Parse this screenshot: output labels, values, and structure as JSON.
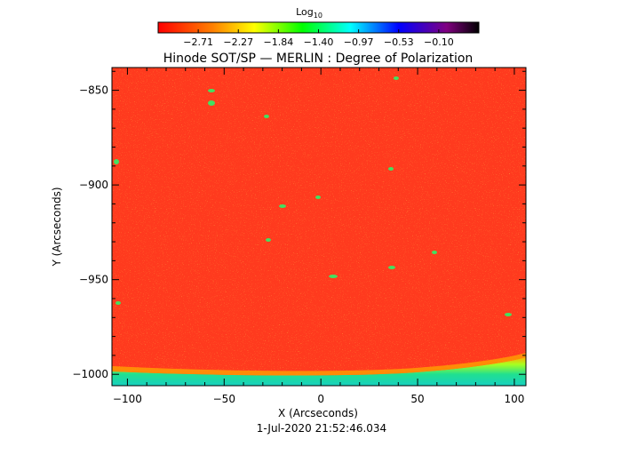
{
  "figure": {
    "title": "Hinode SOT/SP — MERLIN : Degree of Polarization",
    "date_label": "1-Jul-2020 21:52:46.034"
  },
  "colorbar": {
    "label_main": "Log",
    "label_sub": "10",
    "ticks": [
      "−2.71",
      "−2.27",
      "−1.84",
      "−1.40",
      "−0.97",
      "−0.53",
      "−0.10"
    ],
    "tick_values": [
      -2.71,
      -2.27,
      -1.84,
      -1.4,
      -0.97,
      -0.53,
      -0.1
    ],
    "colors": [
      "#ff0000",
      "#ff8000",
      "#ffff00",
      "#00ff00",
      "#00ffff",
      "#0000ff",
      "#800080",
      "#000000"
    ]
  },
  "image": {
    "xlabel": "X (Arcseconds)",
    "ylabel": "Y (Arcseconds)",
    "xlim": [
      -108,
      106
    ],
    "ylim": [
      -1006,
      -838
    ],
    "x_ticks": [
      {
        "v": -100,
        "label": "−100"
      },
      {
        "v": -50,
        "label": "−50"
      },
      {
        "v": 0,
        "label": "0"
      },
      {
        "v": 50,
        "label": "50"
      },
      {
        "v": 100,
        "label": "100"
      }
    ],
    "y_ticks": [
      {
        "v": -850,
        "label": "−850"
      },
      {
        "v": -900,
        "label": "−900"
      },
      {
        "v": -950,
        "label": "−950"
      },
      {
        "v": -1000,
        "label": "−1000"
      }
    ],
    "background_color": "#ff3a1e",
    "limb_color": "#2ed890"
  }
}
